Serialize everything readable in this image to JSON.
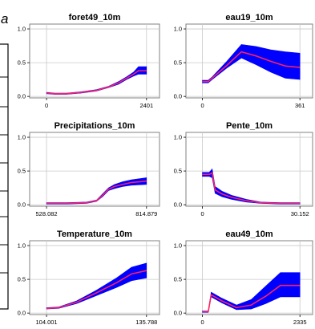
{
  "figure": {
    "panel_label": "a"
  },
  "chart_data": [
    {
      "type": "line",
      "title": "foret49_10m",
      "xlabel": "",
      "ylabel": "",
      "x_tick_labels": [
        "0",
        "2401"
      ],
      "y_tick_labels": [
        "0.0",
        "0.5",
        "1.0"
      ],
      "ylim": [
        0,
        1.05
      ],
      "grid": true,
      "series": [
        {
          "role": "mean",
          "x": [
            0.0,
            0.08,
            0.2,
            0.35,
            0.5,
            0.62,
            0.72,
            0.8,
            0.87,
            0.92,
            1.0
          ],
          "y": [
            0.05,
            0.04,
            0.04,
            0.06,
            0.09,
            0.14,
            0.2,
            0.27,
            0.33,
            0.38,
            0.38
          ]
        },
        {
          "role": "band",
          "lower": [
            0.04,
            0.03,
            0.03,
            0.05,
            0.08,
            0.13,
            0.18,
            0.25,
            0.3,
            0.33,
            0.33
          ],
          "upper": [
            0.06,
            0.05,
            0.05,
            0.07,
            0.1,
            0.15,
            0.22,
            0.29,
            0.36,
            0.44,
            0.44
          ]
        }
      ]
    },
    {
      "type": "line",
      "title": "eau19_10m",
      "xlabel": "",
      "ylabel": "",
      "x_tick_labels": [
        "0",
        "361"
      ],
      "y_tick_labels": [
        "0.0",
        "0.5",
        "1.0"
      ],
      "ylim": [
        0,
        1.05
      ],
      "grid": true,
      "series": [
        {
          "role": "mean",
          "x": [
            0.0,
            0.06,
            0.1,
            0.25,
            0.4,
            0.55,
            0.7,
            0.85,
            1.0
          ],
          "y": [
            0.22,
            0.22,
            0.27,
            0.46,
            0.66,
            0.6,
            0.52,
            0.45,
            0.43
          ]
        },
        {
          "role": "band",
          "lower": [
            0.2,
            0.2,
            0.25,
            0.42,
            0.57,
            0.47,
            0.36,
            0.27,
            0.25
          ],
          "upper": [
            0.24,
            0.24,
            0.29,
            0.52,
            0.77,
            0.74,
            0.69,
            0.66,
            0.64
          ]
        }
      ]
    },
    {
      "type": "line",
      "title": "Precipitations_10m",
      "xlabel": "",
      "ylabel": "",
      "x_tick_labels": [
        "528.082",
        "814.879"
      ],
      "y_tick_labels": [
        "0.0",
        "0.5",
        "1.0"
      ],
      "ylim": [
        0,
        1.05
      ],
      "grid": true,
      "series": [
        {
          "role": "mean",
          "x": [
            0.0,
            0.2,
            0.4,
            0.5,
            0.56,
            0.62,
            0.68,
            0.76,
            0.85,
            1.0
          ],
          "y": [
            0.02,
            0.02,
            0.03,
            0.06,
            0.14,
            0.23,
            0.27,
            0.3,
            0.33,
            0.35
          ]
        },
        {
          "role": "band",
          "lower": [
            0.01,
            0.01,
            0.02,
            0.05,
            0.12,
            0.21,
            0.24,
            0.27,
            0.29,
            0.3
          ],
          "upper": [
            0.03,
            0.03,
            0.04,
            0.07,
            0.16,
            0.25,
            0.3,
            0.34,
            0.37,
            0.4
          ]
        }
      ]
    },
    {
      "type": "line",
      "title": "Pente_10m",
      "xlabel": "",
      "ylabel": "",
      "x_tick_labels": [
        "0",
        "30.152"
      ],
      "y_tick_labels": [
        "0.0",
        "0.5",
        "1.0"
      ],
      "ylim": [
        0,
        1.05
      ],
      "grid": true,
      "series": [
        {
          "role": "mean",
          "x": [
            0.0,
            0.07,
            0.1,
            0.13,
            0.2,
            0.3,
            0.45,
            0.6,
            0.8,
            1.0
          ],
          "y": [
            0.45,
            0.45,
            0.47,
            0.22,
            0.16,
            0.11,
            0.06,
            0.03,
            0.02,
            0.02
          ]
        },
        {
          "role": "band",
          "lower": [
            0.42,
            0.42,
            0.4,
            0.17,
            0.12,
            0.08,
            0.04,
            0.02,
            0.01,
            0.01
          ],
          "upper": [
            0.48,
            0.48,
            0.53,
            0.27,
            0.2,
            0.14,
            0.08,
            0.04,
            0.03,
            0.03
          ]
        }
      ]
    },
    {
      "type": "line",
      "title": "Temperature_10m",
      "xlabel": "",
      "ylabel": "",
      "x_tick_labels": [
        "104.001",
        "135.788"
      ],
      "y_tick_labels": [
        "0.0",
        "0.5",
        "1.0"
      ],
      "ylim": [
        0,
        1.05
      ],
      "grid": true,
      "series": [
        {
          "role": "mean",
          "x": [
            0.0,
            0.12,
            0.3,
            0.5,
            0.7,
            0.85,
            1.0
          ],
          "y": [
            0.07,
            0.08,
            0.16,
            0.3,
            0.45,
            0.58,
            0.63
          ]
        },
        {
          "role": "band",
          "lower": [
            0.06,
            0.07,
            0.14,
            0.26,
            0.38,
            0.48,
            0.52
          ],
          "upper": [
            0.08,
            0.09,
            0.18,
            0.34,
            0.52,
            0.68,
            0.74
          ]
        }
      ]
    },
    {
      "type": "line",
      "title": "eau49_10m",
      "xlabel": "",
      "ylabel": "",
      "x_tick_labels": [
        "0",
        "2335"
      ],
      "y_tick_labels": [
        "0.0",
        "0.5",
        "1.0"
      ],
      "ylim": [
        0,
        1.05
      ],
      "grid": true,
      "series": [
        {
          "role": "mean",
          "x": [
            0.0,
            0.06,
            0.09,
            0.2,
            0.35,
            0.5,
            0.65,
            0.8,
            1.0
          ],
          "y": [
            0.02,
            0.02,
            0.27,
            0.18,
            0.08,
            0.12,
            0.25,
            0.41,
            0.41
          ]
        },
        {
          "role": "band",
          "lower": [
            0.01,
            0.01,
            0.24,
            0.15,
            0.05,
            0.06,
            0.14,
            0.24,
            0.24
          ],
          "upper": [
            0.03,
            0.03,
            0.31,
            0.22,
            0.12,
            0.2,
            0.4,
            0.6,
            0.6
          ]
        }
      ]
    }
  ],
  "colors": {
    "band": "#0000ff",
    "mean": "#ff2060",
    "grid": "#c9c9c9",
    "axis": "#808080"
  }
}
